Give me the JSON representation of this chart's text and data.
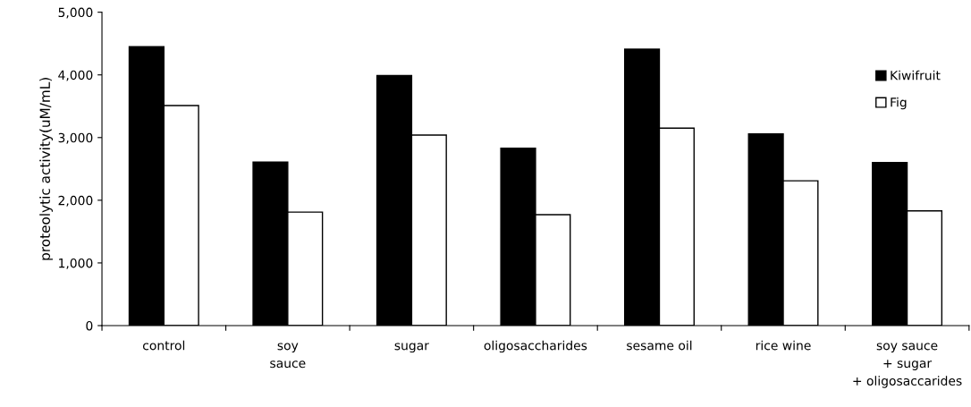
{
  "chart_data": {
    "type": "bar",
    "ylabel": "proteolytic activity(uM/mL)",
    "categories": [
      "control",
      "soy\nsauce",
      "sugar",
      "oligosaccharides",
      "sesame oil",
      "rice wine",
      "soy sauce\n+ sugar\n+ oligosaccarides"
    ],
    "series": [
      {
        "name": "Kiwifruit",
        "color": "#000000",
        "values": [
          4450,
          2610,
          3990,
          2830,
          4410,
          3060,
          2600
        ]
      },
      {
        "name": "Fig",
        "color": "#ffffff",
        "values": [
          3510,
          1810,
          3040,
          1770,
          3150,
          2310,
          1830
        ]
      }
    ],
    "ylim": [
      0,
      5000
    ],
    "yticks": [
      {
        "value": 0,
        "label": "0"
      },
      {
        "value": 1000,
        "label": "1,000"
      },
      {
        "value": 2000,
        "label": "2,000"
      },
      {
        "value": 3000,
        "label": "3,000"
      },
      {
        "value": 4000,
        "label": "4,000"
      },
      {
        "value": 5000,
        "label": "5,000"
      }
    ],
    "grid": false,
    "legend": "top right"
  }
}
